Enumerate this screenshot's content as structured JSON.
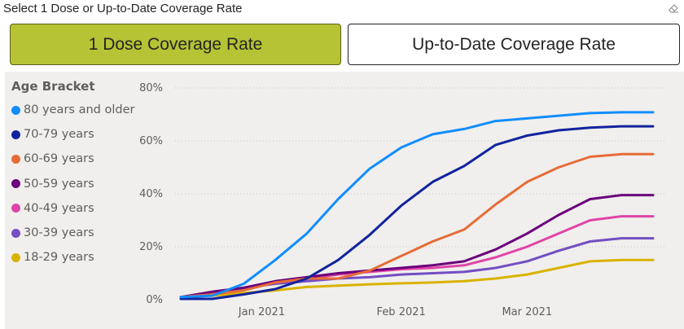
{
  "slicer": {
    "title": "Select 1 Dose or Up-to-Date Coverage Rate",
    "buttons": [
      {
        "label": "1 Dose Coverage Rate",
        "selected": true
      },
      {
        "label": "Up-to-Date Coverage Rate",
        "selected": false
      }
    ],
    "active_color": "#b5c334"
  },
  "chart_data": {
    "type": "line",
    "legend_title": "Age Bracket",
    "legend_position": "left",
    "grid": true,
    "ylim": [
      0,
      80
    ],
    "y_ticks": [
      "0%",
      "20%",
      "40%",
      "60%",
      "80%"
    ],
    "x_ticks": [
      "Jan 2021",
      "Feb 2021",
      "Mar 2021"
    ],
    "x": [
      "2020-12-14",
      "2020-12-21",
      "2020-12-28",
      "2021-01-04",
      "2021-01-11",
      "2021-01-18",
      "2021-01-25",
      "2021-02-01",
      "2021-02-08",
      "2021-02-15",
      "2021-02-22",
      "2021-03-01",
      "2021-03-08",
      "2021-03-15",
      "2021-03-22",
      "2021-03-29"
    ],
    "series": [
      {
        "name": "80 years and older",
        "color": "#118dff",
        "values": [
          1,
          1.5,
          6,
          15,
          25,
          38,
          49.5,
          57.5,
          62.5,
          64.5,
          67.5,
          68.5,
          69.5,
          70.5,
          70.8,
          70.8
        ]
      },
      {
        "name": "70-79 years",
        "color": "#12239e",
        "values": [
          0.3,
          0.3,
          2,
          4,
          8,
          15,
          24.5,
          35.5,
          44.5,
          50.5,
          58.5,
          62,
          64,
          65,
          65.5,
          65.5
        ]
      },
      {
        "name": "60-69 years",
        "color": "#e66c37",
        "values": [
          1,
          2,
          3.5,
          6.5,
          8,
          8,
          11,
          16.5,
          22,
          26.5,
          36,
          44.5,
          50,
          54,
          55,
          55
        ]
      },
      {
        "name": "50-59 years",
        "color": "#6b007b",
        "values": [
          1,
          3,
          4.5,
          7,
          8.5,
          10,
          11,
          12,
          13,
          14.5,
          19,
          25,
          32,
          38,
          39.5,
          39.5
        ]
      },
      {
        "name": "40-49 years",
        "color": "#e044a7",
        "values": [
          1,
          3,
          4.5,
          6.5,
          8,
          9.5,
          10.5,
          11.5,
          12,
          13,
          16,
          20,
          25,
          30,
          31.5,
          31.5
        ]
      },
      {
        "name": "30-39 years",
        "color": "#744ec2",
        "values": [
          1,
          2.5,
          4.5,
          6,
          7,
          8,
          8.5,
          9.5,
          10,
          10.5,
          12,
          14.5,
          18.5,
          22,
          23.2,
          23.2
        ]
      },
      {
        "name": "18-29 years",
        "color": "#d9b300",
        "values": [
          1,
          1.5,
          2.5,
          3.5,
          4.8,
          5.3,
          5.8,
          6.2,
          6.5,
          7,
          8,
          9.5,
          12,
          14.5,
          15,
          15
        ]
      }
    ]
  }
}
